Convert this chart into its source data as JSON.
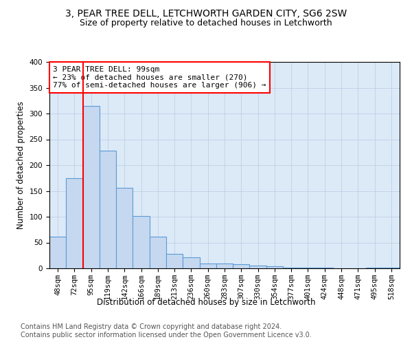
{
  "title_line1": "3, PEAR TREE DELL, LETCHWORTH GARDEN CITY, SG6 2SW",
  "title_line2": "Size of property relative to detached houses in Letchworth",
  "xlabel": "Distribution of detached houses by size in Letchworth",
  "ylabel": "Number of detached properties",
  "categories": [
    "48sqm",
    "72sqm",
    "95sqm",
    "119sqm",
    "142sqm",
    "166sqm",
    "189sqm",
    "213sqm",
    "236sqm",
    "260sqm",
    "283sqm",
    "307sqm",
    "330sqm",
    "354sqm",
    "377sqm",
    "401sqm",
    "424sqm",
    "448sqm",
    "471sqm",
    "495sqm",
    "518sqm"
  ],
  "values": [
    62,
    175,
    315,
    228,
    156,
    102,
    62,
    28,
    22,
    9,
    9,
    8,
    6,
    4,
    2,
    1,
    1,
    0.5,
    0.5,
    2,
    2
  ],
  "bar_color": "#c5d8f0",
  "bar_edge_color": "#5b9bd5",
  "property_line_idx": 2,
  "annotation_text": "3 PEAR TREE DELL: 99sqm\n← 23% of detached houses are smaller (270)\n77% of semi-detached houses are larger (906) →",
  "annotation_box_color": "white",
  "annotation_box_edge_color": "red",
  "vline_color": "red",
  "ylim": [
    0,
    400
  ],
  "yticks": [
    0,
    50,
    100,
    150,
    200,
    250,
    300,
    350,
    400
  ],
  "grid_color": "#b8cce4",
  "background_color": "white",
  "axes_bg_color": "#dce9f7",
  "footer_line1": "Contains HM Land Registry data © Crown copyright and database right 2024.",
  "footer_line2": "Contains public sector information licensed under the Open Government Licence v3.0.",
  "title_fontsize": 10,
  "subtitle_fontsize": 9,
  "axis_label_fontsize": 8.5,
  "tick_fontsize": 7.5,
  "annotation_fontsize": 8,
  "footer_fontsize": 7
}
